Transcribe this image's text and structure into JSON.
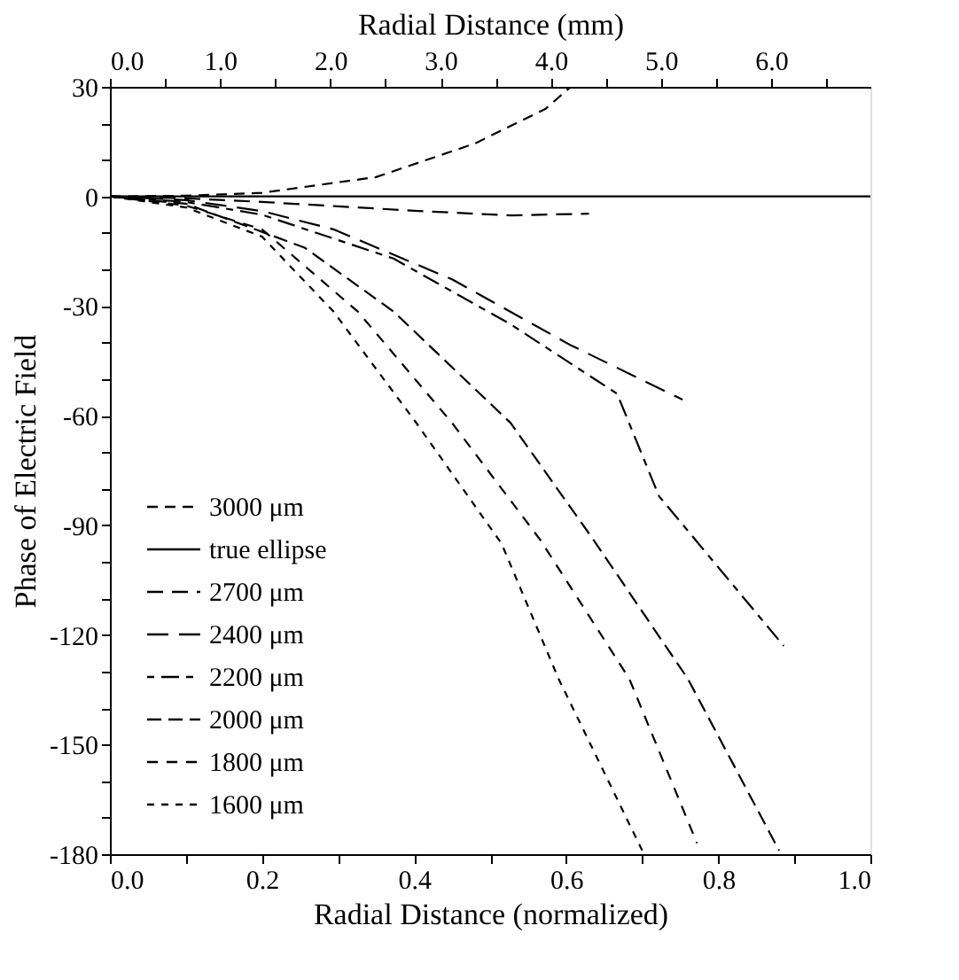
{
  "chart_data": {
    "type": "line",
    "xlabel": "Radial Distance (normalized)",
    "ylabel": "Phase of Electric Field",
    "x2label": "Radial Distance (mm)",
    "xlim": [
      0,
      1
    ],
    "xticks": [
      {
        "value": 0,
        "label": "0.0"
      },
      {
        "value": 0.1,
        "label": null
      },
      {
        "value": 0.2,
        "label": "0.2"
      },
      {
        "value": 0.3,
        "label": null
      },
      {
        "value": 0.4,
        "label": "0.4"
      },
      {
        "value": 0.5,
        "label": null
      },
      {
        "value": 0.6,
        "label": "0.6"
      },
      {
        "value": 0.7,
        "label": null
      },
      {
        "value": 0.8,
        "label": "0.8"
      },
      {
        "value": 0.9,
        "label": null
      },
      {
        "value": 1,
        "label": "1.0"
      }
    ],
    "x2lim": [
      0,
      6.9
    ],
    "x2ticks": [
      {
        "value": 0,
        "label": "0.0"
      },
      {
        "value": 0.5,
        "label": null
      },
      {
        "value": 1,
        "label": "1.0"
      },
      {
        "value": 1.5,
        "label": null
      },
      {
        "value": 2,
        "label": "2.0"
      },
      {
        "value": 2.5,
        "label": null
      },
      {
        "value": 3,
        "label": "3.0"
      },
      {
        "value": 3.5,
        "label": null
      },
      {
        "value": 4,
        "label": "4.0"
      },
      {
        "value": 4.5,
        "label": null
      },
      {
        "value": 5,
        "label": "5.0"
      },
      {
        "value": 5.5,
        "label": null
      },
      {
        "value": 6,
        "label": "6.0"
      },
      {
        "value": 6.5,
        "label": null
      }
    ],
    "ylim": [
      -180,
      30
    ],
    "yticks": [
      -180,
      {
        "value": -170,
        "label": null
      },
      {
        "value": -160,
        "label": null
      },
      -150,
      {
        "value": -140,
        "label": null
      },
      {
        "value": -130,
        "label": null
      },
      -120,
      {
        "value": -110,
        "label": null
      },
      {
        "value": -100,
        "label": null
      },
      -90,
      {
        "value": -80,
        "label": null
      },
      {
        "value": -70,
        "label": null
      },
      -60,
      {
        "value": -50,
        "label": null
      },
      {
        "value": -40,
        "label": null
      },
      -30,
      {
        "value": -20,
        "label": null
      },
      {
        "value": -10,
        "label": null
      },
      0,
      {
        "value": 10,
        "label": null
      },
      {
        "value": 20,
        "label": null
      },
      30
    ],
    "grid": false,
    "legend": "bottom left",
    "marker": "none",
    "series": [
      {
        "name": "3000 μm",
        "color": "#000000",
        "line_style": "dashed",
        "x": [
          0,
          0.1,
          0.2,
          0.35,
          0.48,
          0.573,
          0.606
        ],
        "values": [
          0,
          0.2,
          1,
          5.3,
          14.5,
          24,
          30
        ]
      },
      {
        "name": "true ellipse",
        "color": "#000000",
        "line_style": "solid",
        "x": [
          0,
          1
        ],
        "values": [
          0,
          0
        ]
      },
      {
        "name": "2700 μm",
        "color": "#000000",
        "line_style": "dashed",
        "x": [
          0,
          0.1,
          0.2,
          0.3,
          0.4,
          0.527,
          0.63
        ],
        "values": [
          0,
          -0.5,
          -1.5,
          -2.7,
          -3.9,
          -5.2,
          -4.7
        ]
      },
      {
        "name": "2400 μm",
        "color": "#000000",
        "line_style": "dashed",
        "x": [
          0,
          0.1,
          0.2,
          0.294,
          0.45,
          0.605,
          0.753
        ],
        "values": [
          0,
          -1,
          -4,
          -9,
          -22.7,
          -40.6,
          -55.6
        ]
      },
      {
        "name": "2200 μm",
        "color": "#000000",
        "line_style": "dashed",
        "x": [
          0,
          0.1,
          0.2,
          0.373,
          0.527,
          0.667,
          0.722,
          0.886
        ],
        "values": [
          0,
          -1.5,
          -5,
          -17,
          -35,
          -54,
          -82,
          -123
        ]
      },
      {
        "name": "2000 μm",
        "color": "#000000",
        "line_style": "dashed",
        "x": [
          0,
          0.1,
          0.256,
          0.373,
          0.527,
          0.636,
          0.76,
          0.88
        ],
        "values": [
          0,
          -2,
          -14,
          -31.5,
          -62,
          -94,
          -132,
          -179
        ]
      },
      {
        "name": "1800 μm",
        "color": "#000000",
        "line_style": "dashed",
        "x": [
          0,
          0.1,
          0.2,
          0.326,
          0.45,
          0.566,
          0.683,
          0.772
        ],
        "values": [
          0,
          -2.5,
          -9,
          -31.5,
          -62,
          -94,
          -132,
          -177
        ]
      },
      {
        "name": "1600 μm",
        "color": "#000000",
        "line_style": "dashed",
        "x": [
          0,
          0.1,
          0.2,
          0.294,
          0.403,
          0.515,
          0.59,
          0.7
        ],
        "values": [
          0,
          -3,
          -11,
          -31.5,
          -62,
          -95,
          -132,
          -179
        ]
      }
    ]
  }
}
